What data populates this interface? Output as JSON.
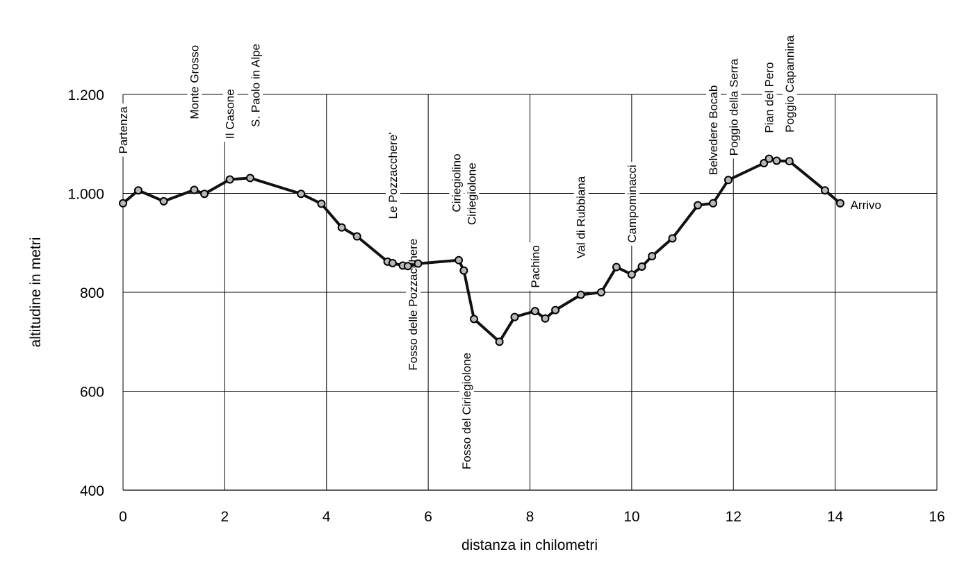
{
  "colors": {
    "line": "#111111",
    "marker_fill": "#b8b8b8",
    "grid": "#000000",
    "background": "#ffffff",
    "text": "#000000"
  },
  "chart_data": {
    "type": "line",
    "title": "",
    "xlabel": "distanza in chilometri",
    "ylabel": "altitudine  in metri",
    "xlim": [
      0,
      16
    ],
    "ylim": [
      400,
      1200
    ],
    "grid": true,
    "x_ticks": [
      0,
      2,
      4,
      6,
      8,
      10,
      12,
      14,
      16
    ],
    "x_tick_labels": [
      "0",
      "2",
      "4",
      "6",
      "8",
      "10",
      "12",
      "14",
      "16"
    ],
    "y_ticks": [
      400,
      600,
      800,
      1000,
      1200
    ],
    "y_tick_labels": [
      "400",
      "600",
      "800",
      "1.000",
      "1.200"
    ],
    "series": [
      {
        "points": [
          [
            0.0,
            980
          ],
          [
            0.3,
            1006
          ],
          [
            0.8,
            984
          ],
          [
            1.4,
            1007
          ],
          [
            1.6,
            999
          ],
          [
            2.1,
            1028
          ],
          [
            2.5,
            1031
          ],
          [
            3.5,
            999
          ],
          [
            3.9,
            979
          ],
          [
            4.3,
            931
          ],
          [
            4.6,
            913
          ],
          [
            5.2,
            862
          ],
          [
            5.3,
            859
          ],
          [
            5.5,
            854
          ],
          [
            5.6,
            853
          ],
          [
            5.8,
            858
          ],
          [
            6.6,
            865
          ],
          [
            6.7,
            844
          ],
          [
            6.9,
            746
          ],
          [
            7.4,
            700
          ],
          [
            7.7,
            750
          ],
          [
            8.1,
            762
          ],
          [
            8.3,
            747
          ],
          [
            8.5,
            764
          ],
          [
            9.0,
            795
          ],
          [
            9.4,
            800
          ],
          [
            9.7,
            851
          ],
          [
            10.0,
            836
          ],
          [
            10.2,
            852
          ],
          [
            10.4,
            873
          ],
          [
            10.8,
            909
          ],
          [
            11.3,
            976
          ],
          [
            11.6,
            980
          ],
          [
            11.9,
            1027
          ],
          [
            12.6,
            1061
          ],
          [
            12.7,
            1070
          ],
          [
            12.85,
            1066
          ],
          [
            13.1,
            1065
          ],
          [
            13.8,
            1006
          ],
          [
            14.1,
            980
          ]
        ]
      }
    ],
    "annotations": [
      {
        "text": "Partenza",
        "x": 0.0,
        "y": 1080,
        "rotate": true,
        "anchor": "start"
      },
      {
        "text": "Monte Grosso",
        "x": 1.4,
        "y": 1150,
        "rotate": true,
        "anchor": "start"
      },
      {
        "text": "Il Casone",
        "x": 2.1,
        "y": 1110,
        "rotate": true,
        "anchor": "start"
      },
      {
        "text": "S. Paolo in Alpe",
        "x": 2.6,
        "y": 1134,
        "rotate": true,
        "anchor": "start"
      },
      {
        "text": "Le Pozzacchere'",
        "x": 5.3,
        "y": 948,
        "rotate": true,
        "anchor": "start"
      },
      {
        "text": "Fosso delle Pozzacchere",
        "x": 5.7,
        "y": 642,
        "rotate": true,
        "anchor": "start"
      },
      {
        "text": "Ciriegiolino",
        "x": 6.55,
        "y": 962,
        "rotate": true,
        "anchor": "start"
      },
      {
        "text": "Ciriegiolone",
        "x": 6.85,
        "y": 936,
        "rotate": true,
        "anchor": "start"
      },
      {
        "text": "Fosso del Ciriegiolone",
        "x": 6.75,
        "y": 442,
        "rotate": true,
        "anchor": "start"
      },
      {
        "text": "Pachino",
        "x": 8.1,
        "y": 809,
        "rotate": true,
        "anchor": "start"
      },
      {
        "text": "Val di Rubbiana",
        "x": 9.0,
        "y": 868,
        "rotate": true,
        "anchor": "start"
      },
      {
        "text": "Campominacci",
        "x": 10.0,
        "y": 900,
        "rotate": true,
        "anchor": "start"
      },
      {
        "text": "Belvedere Bocab",
        "x": 11.6,
        "y": 1037,
        "rotate": true,
        "anchor": "start"
      },
      {
        "text": "Poggio della Serra",
        "x": 12.0,
        "y": 1076,
        "rotate": true,
        "anchor": "start"
      },
      {
        "text": "Pian del Pero",
        "x": 12.7,
        "y": 1122,
        "rotate": true,
        "anchor": "start"
      },
      {
        "text": "Poggio Capannina",
        "x": 13.1,
        "y": 1123,
        "rotate": true,
        "anchor": "start"
      },
      {
        "text": "Arrivo",
        "x": 14.3,
        "y": 977,
        "rotate": false,
        "anchor": "start"
      }
    ]
  }
}
